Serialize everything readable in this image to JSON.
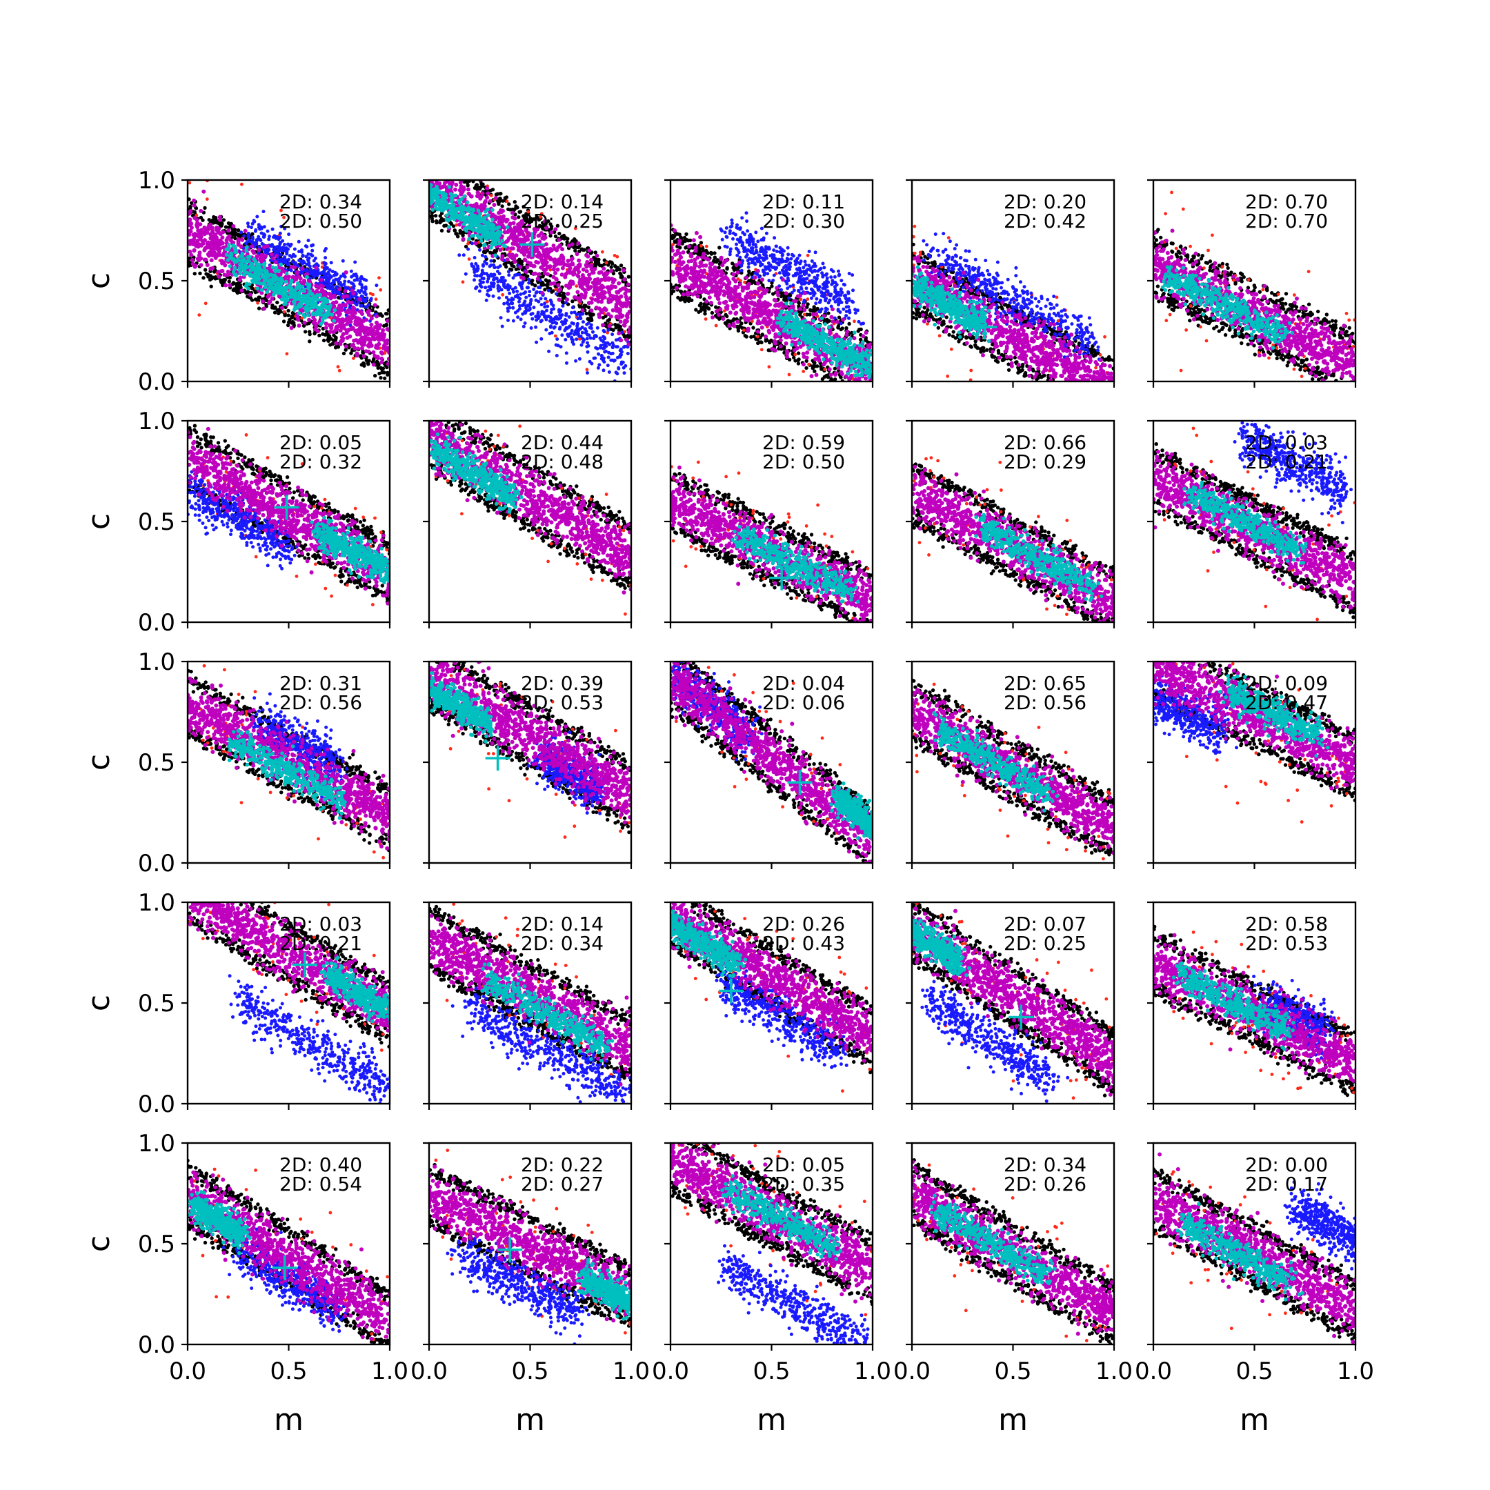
{
  "chart_data": {
    "type": "scatter",
    "layout": {
      "rows": 5,
      "cols": 5
    },
    "xlabel": "m",
    "ylabel": "c",
    "xlim": [
      0.0,
      1.0
    ],
    "ylim": [
      0.0,
      1.0
    ],
    "xticks": [
      "0.0",
      "0.5",
      "1.0"
    ],
    "yticks": [
      "0.0",
      "0.5",
      "1.0"
    ],
    "grid": false,
    "series_colors": {
      "black": "#000000",
      "red": "#ff2a1a",
      "blue": "#1a1aff",
      "magenta": "#bf00bf",
      "cyan": "#00bfbf"
    },
    "panels": [
      {
        "stats": [
          "2D: 0.34",
          "2D: 0.50"
        ],
        "band": {
          "intercept": 0.74,
          "slope": -0.56,
          "width": 0.15
        },
        "core": {
          "m": 0.45,
          "c": 0.48,
          "len": 0.5
        },
        "blue": {
          "m": 0.6,
          "c": 0.5,
          "len": 0.6,
          "offset": 0.06
        },
        "marker": null
      },
      {
        "stats": [
          "2D: 0.14",
          "2D: 0.25"
        ],
        "band": {
          "intercept": 0.98,
          "slope": -0.62,
          "width": 0.16
        },
        "core": {
          "m": 0.15,
          "c": 0.84,
          "len": 0.4
        },
        "blue": {
          "m": 0.6,
          "c": 0.33,
          "len": 0.8,
          "offset": 0
        },
        "marker": {
          "m": 0.51,
          "c": 0.68
        }
      },
      {
        "stats": [
          "2D: 0.11",
          "2D: 0.30"
        ],
        "band": {
          "intercept": 0.6,
          "slope": -0.55,
          "width": 0.15
        },
        "core": {
          "m": 0.78,
          "c": 0.19,
          "len": 0.45
        },
        "blue": {
          "m": 0.6,
          "c": 0.55,
          "len": 0.6,
          "offset": 0
        },
        "marker": null
      },
      {
        "stats": [
          "2D: 0.20",
          "2D: 0.42"
        ],
        "band": {
          "intercept": 0.5,
          "slope": -0.55,
          "width": 0.15
        },
        "core": {
          "m": 0.18,
          "c": 0.38,
          "len": 0.35
        },
        "blue": {
          "m": 0.5,
          "c": 0.4,
          "len": 0.8,
          "offset": 0
        },
        "marker": {
          "m": 0.36,
          "c": 0.27
        }
      },
      {
        "stats": [
          "2D: 0.70",
          "2D: 0.70"
        ],
        "band": {
          "intercept": 0.58,
          "slope": -0.5,
          "width": 0.15
        },
        "core": {
          "m": 0.35,
          "c": 0.38,
          "len": 0.6
        },
        "blue": null,
        "marker": null
      },
      {
        "stats": [
          "2D: 0.05",
          "2D: 0.32"
        ],
        "band": {
          "intercept": 0.82,
          "slope": -0.57,
          "width": 0.15
        },
        "core": {
          "m": 0.82,
          "c": 0.35,
          "len": 0.35
        },
        "blue": {
          "m": 0.25,
          "c": 0.52,
          "len": 0.5,
          "offset": 0
        },
        "marker": {
          "m": 0.49,
          "c": 0.57
        }
      },
      {
        "stats": [
          "2D: 0.44",
          "2D: 0.48"
        ],
        "band": {
          "intercept": 0.92,
          "slope": -0.6,
          "width": 0.16
        },
        "core": {
          "m": 0.22,
          "c": 0.74,
          "len": 0.4
        },
        "blue": null,
        "marker": null
      },
      {
        "stats": [
          "2D: 0.59",
          "2D: 0.50"
        ],
        "band": {
          "intercept": 0.6,
          "slope": -0.5,
          "width": 0.15
        },
        "core": {
          "m": 0.62,
          "c": 0.28,
          "len": 0.55
        },
        "blue": null,
        "marker": {
          "m": 0.55,
          "c": 0.22
        }
      },
      {
        "stats": [
          "2D: 0.66",
          "2D: 0.29"
        ],
        "band": {
          "intercept": 0.65,
          "slope": -0.55,
          "width": 0.15
        },
        "core": {
          "m": 0.62,
          "c": 0.32,
          "len": 0.55
        },
        "blue": null,
        "marker": null
      },
      {
        "stats": [
          "2D: 0.03",
          "2D: 0.21"
        ],
        "band": {
          "intercept": 0.72,
          "slope": -0.52,
          "width": 0.15
        },
        "core": {
          "m": 0.45,
          "c": 0.5,
          "len": 0.55
        },
        "blue": {
          "m": 0.7,
          "c": 0.78,
          "len": 0.5,
          "offset": 0
        },
        "marker": null
      },
      {
        "stats": [
          "2D: 0.31",
          "2D: 0.56"
        ],
        "band": {
          "intercept": 0.78,
          "slope": -0.55,
          "width": 0.15
        },
        "core": {
          "m": 0.5,
          "c": 0.45,
          "len": 0.55
        },
        "blue": {
          "m": 0.55,
          "c": 0.55,
          "len": 0.4,
          "offset": 0.04
        },
        "marker": null
      },
      {
        "stats": [
          "2D: 0.39",
          "2D: 0.53"
        ],
        "band": {
          "intercept": 0.93,
          "slope": -0.6,
          "width": 0.16
        },
        "core": {
          "m": 0.15,
          "c": 0.78,
          "len": 0.3
        },
        "blue": {
          "m": 0.7,
          "c": 0.45,
          "len": 0.3,
          "offset": 0
        },
        "marker": {
          "m": 0.34,
          "c": 0.52
        }
      },
      {
        "stats": [
          "2D: 0.04",
          "2D: 0.06"
        ],
        "band": {
          "intercept": 0.92,
          "slope": -0.8,
          "width": 0.15
        },
        "core": {
          "m": 0.92,
          "c": 0.25,
          "len": 0.2
        },
        "blue": {
          "m": 0.2,
          "c": 0.78,
          "len": 0.4,
          "offset": 0
        },
        "marker": {
          "m": 0.64,
          "c": 0.4
        }
      },
      {
        "stats": [
          "2D: 0.65",
          "2D: 0.56"
        ],
        "band": {
          "intercept": 0.75,
          "slope": -0.58,
          "width": 0.15
        },
        "core": {
          "m": 0.4,
          "c": 0.5,
          "len": 0.55
        },
        "blue": null,
        "marker": null
      },
      {
        "stats": [
          "2D: 0.09",
          "2D: 0.47"
        ],
        "band": {
          "intercept": 0.98,
          "slope": -0.5,
          "width": 0.16
        },
        "core": {
          "m": 0.6,
          "c": 0.74,
          "len": 0.45
        },
        "blue": {
          "m": 0.15,
          "c": 0.75,
          "len": 0.35,
          "offset": 0
        },
        "marker": null
      },
      {
        "stats": [
          "2D: 0.03",
          "2D: 0.21"
        ],
        "band": {
          "intercept": 1.05,
          "slope": -0.6,
          "width": 0.15
        },
        "core": {
          "m": 0.85,
          "c": 0.55,
          "len": 0.3
        },
        "blue": {
          "m": 0.65,
          "c": 0.28,
          "len": 0.8,
          "offset": 0
        },
        "marker": {
          "m": 0.58,
          "c": 0.69
        }
      },
      {
        "stats": [
          "2D: 0.14",
          "2D: 0.34"
        ],
        "band": {
          "intercept": 0.82,
          "slope": -0.55,
          "width": 0.16
        },
        "core": {
          "m": 0.58,
          "c": 0.45,
          "len": 0.6
        },
        "blue": {
          "m": 0.6,
          "c": 0.25,
          "len": 0.8,
          "offset": 0
        },
        "marker": null
      },
      {
        "stats": [
          "2D: 0.26",
          "2D: 0.43"
        ],
        "band": {
          "intercept": 0.93,
          "slope": -0.6,
          "width": 0.15
        },
        "core": {
          "m": 0.15,
          "c": 0.8,
          "len": 0.35
        },
        "blue": {
          "m": 0.55,
          "c": 0.43,
          "len": 0.6,
          "offset": 0
        },
        "marker": {
          "m": 0.3,
          "c": 0.56
        }
      },
      {
        "stats": [
          "2D: 0.07",
          "2D: 0.25"
        ],
        "band": {
          "intercept": 0.86,
          "slope": -0.65,
          "width": 0.15
        },
        "core": {
          "m": 0.12,
          "c": 0.78,
          "len": 0.25
        },
        "blue": {
          "m": 0.38,
          "c": 0.32,
          "len": 0.6,
          "offset": 0
        },
        "marker": {
          "m": 0.54,
          "c": 0.43
        }
      },
      {
        "stats": [
          "2D: 0.58",
          "2D: 0.53"
        ],
        "band": {
          "intercept": 0.7,
          "slope": -0.5,
          "width": 0.15
        },
        "core": {
          "m": 0.4,
          "c": 0.5,
          "len": 0.55
        },
        "blue": {
          "m": 0.7,
          "c": 0.4,
          "len": 0.3,
          "offset": 0.02
        },
        "marker": null
      },
      {
        "stats": [
          "2D: 0.40",
          "2D: 0.54"
        ],
        "band": {
          "intercept": 0.74,
          "slope": -0.62,
          "width": 0.15
        },
        "core": {
          "m": 0.15,
          "c": 0.62,
          "len": 0.25
        },
        "blue": {
          "m": 0.5,
          "c": 0.32,
          "len": 0.5,
          "offset": 0
        },
        "marker": {
          "m": 0.48,
          "c": 0.38
        }
      },
      {
        "stats": [
          "2D: 0.22",
          "2D: 0.27"
        ],
        "band": {
          "intercept": 0.74,
          "slope": -0.5,
          "width": 0.15
        },
        "core": {
          "m": 0.88,
          "c": 0.27,
          "len": 0.25
        },
        "blue": {
          "m": 0.45,
          "c": 0.3,
          "len": 0.6,
          "offset": 0
        },
        "marker": {
          "m": 0.4,
          "c": 0.47
        }
      },
      {
        "stats": [
          "2D: 0.05",
          "2D: 0.35"
        ],
        "band": {
          "intercept": 0.92,
          "slope": -0.55,
          "width": 0.16
        },
        "core": {
          "m": 0.55,
          "c": 0.62,
          "len": 0.55
        },
        "blue": {
          "m": 0.6,
          "c": 0.2,
          "len": 0.7,
          "offset": 0
        },
        "marker": null
      },
      {
        "stats": [
          "2D: 0.34",
          "2D: 0.26"
        ],
        "band": {
          "intercept": 0.75,
          "slope": -0.6,
          "width": 0.15
        },
        "core": {
          "m": 0.4,
          "c": 0.5,
          "len": 0.55
        },
        "blue": null,
        "marker": null
      },
      {
        "stats": [
          "2D: 0.00",
          "2D: 0.17"
        ],
        "band": {
          "intercept": 0.72,
          "slope": -0.55,
          "width": 0.15
        },
        "core": {
          "m": 0.42,
          "c": 0.45,
          "len": 0.55
        },
        "blue": {
          "m": 0.88,
          "c": 0.58,
          "len": 0.35,
          "offset": 0
        },
        "marker": null
      }
    ]
  }
}
